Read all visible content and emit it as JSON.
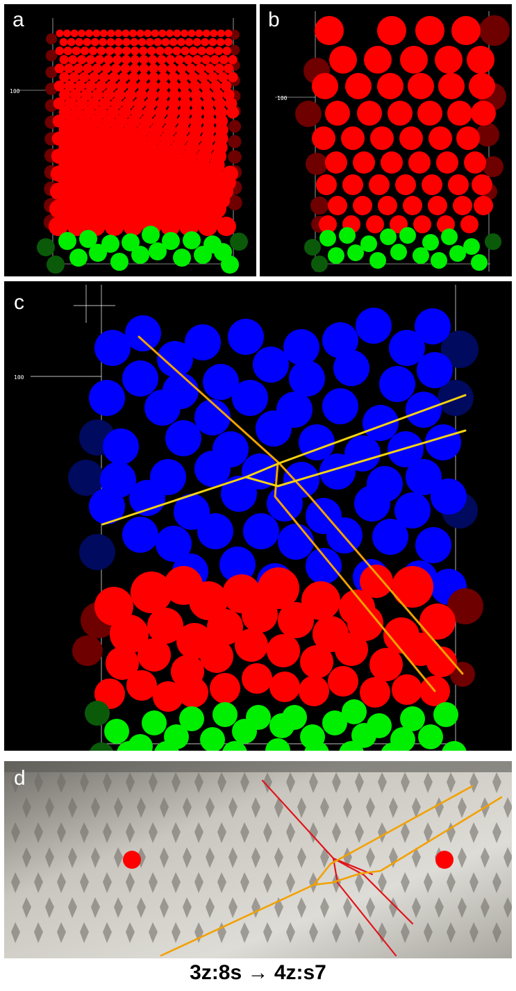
{
  "panels": {
    "a": {
      "label": "a",
      "tick_label": "100"
    },
    "b": {
      "label": "b",
      "tick_label": "100"
    },
    "c": {
      "label": "c",
      "tick_label": "100"
    },
    "d": {
      "label": "d"
    }
  },
  "caption": "3z:8s → 4z:s7",
  "colors": {
    "background": "#000000",
    "red": "#ff0000",
    "dark_red": "#6e0000",
    "green": "#00ee00",
    "dark_green": "#0a5a0a",
    "blue": "#0000ff",
    "dark_blue": "#000a5e",
    "yellow_line": "#f5d311",
    "orange_line": "#f2a100",
    "red_line": "#e0141a",
    "red_dot": "#ff0000"
  }
}
